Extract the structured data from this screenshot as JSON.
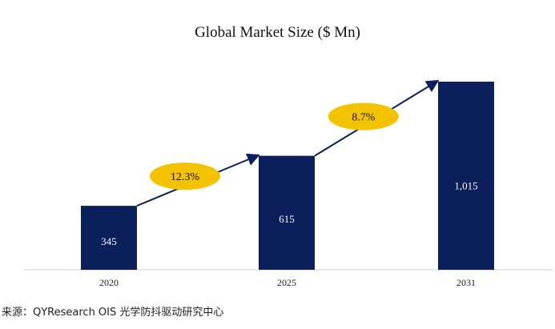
{
  "chart_data": {
    "type": "bar",
    "title": "Global Market Size ($ Mn)",
    "categories": [
      "2020",
      "2025",
      "2031"
    ],
    "values": [
      345,
      615,
      1015
    ],
    "value_labels": [
      "345",
      "615",
      "1,015"
    ],
    "ylim": [
      0,
      1015
    ],
    "grid": false,
    "growth_rates": [
      {
        "from": "2020",
        "to": "2025",
        "label": "12.3%"
      },
      {
        "from": "2025",
        "to": "2031",
        "label": "8.7%"
      }
    ],
    "colors": {
      "bar": "#0a1f5c",
      "arrow": "#0a1f5c",
      "badge": "#f4c300",
      "axis": "#cfcfcf"
    }
  },
  "source": "来源：QYResearch OIS 光学防抖驱动研究中心"
}
